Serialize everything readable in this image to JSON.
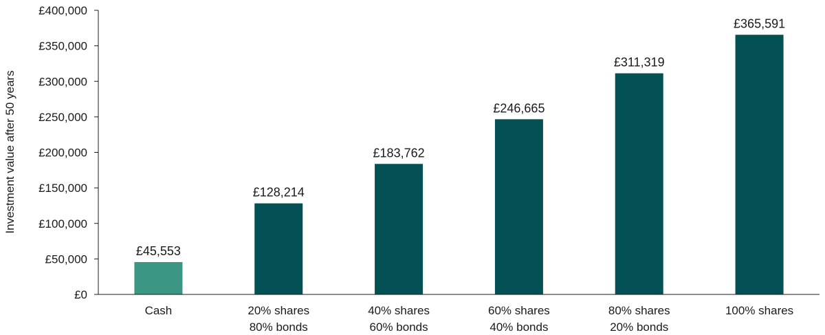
{
  "chart_data": {
    "type": "bar",
    "categories": [
      [
        "Cash"
      ],
      [
        "20% shares",
        "80% bonds"
      ],
      [
        "40% shares",
        "60% bonds"
      ],
      [
        "60% shares",
        "40% bonds"
      ],
      [
        "80% shares",
        "20% bonds"
      ],
      [
        "100% shares"
      ]
    ],
    "values": [
      45553,
      128214,
      183762,
      246665,
      311319,
      365591
    ],
    "value_labels": [
      "£45,553",
      "£128,214",
      "£183,762",
      "£246,665",
      "£311,319",
      "£365,591"
    ],
    "ylabel": "Investment value after 50 years",
    "ylim": [
      0,
      400000
    ],
    "yticks": [
      0,
      50000,
      100000,
      150000,
      200000,
      250000,
      300000,
      350000,
      400000
    ],
    "ytick_labels": [
      "£0",
      "£50,000",
      "£100,000",
      "£150,000",
      "£200,000",
      "£250,000",
      "£300,000",
      "£350,000",
      "£400,000"
    ],
    "grid": false,
    "legend": "none",
    "colors": {
      "cash": "#3b9783",
      "shares": "#035055",
      "axis": "#1a1a1a"
    }
  }
}
